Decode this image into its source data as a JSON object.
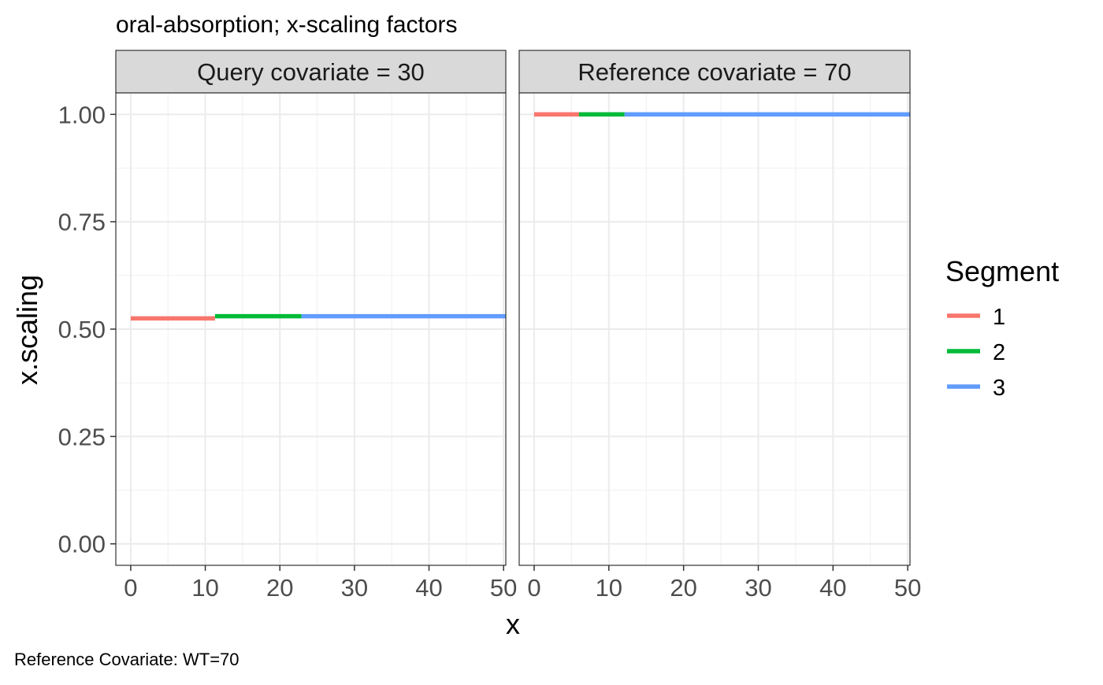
{
  "chart_data": {
    "type": "line",
    "title": "oral-absorption; x-scaling factors",
    "caption": "Reference Covariate: WT=70",
    "xlabel": "x",
    "ylabel": "x.scaling",
    "xlim": [
      -2,
      50.3
    ],
    "ylim": [
      -0.05,
      1.05
    ],
    "x_ticks": [
      0,
      10,
      20,
      30,
      40,
      50
    ],
    "x_tick_labels": [
      "0",
      "10",
      "20",
      "30",
      "40",
      "50"
    ],
    "y_ticks": [
      0,
      0.25,
      0.5,
      0.75,
      1
    ],
    "y_tick_labels": [
      "0.00",
      "0.25",
      "0.50",
      "0.75",
      "1.00"
    ],
    "grid": true,
    "legend": {
      "title": "Segment",
      "position": "right",
      "entries": [
        {
          "label": "1",
          "color": "#F8766D"
        },
        {
          "label": "2",
          "color": "#00BA38"
        },
        {
          "label": "3",
          "color": "#619CFF"
        }
      ]
    },
    "panels": [
      {
        "strip": "Query  covariate = 30",
        "segments": [
          {
            "segment": "1",
            "x": [
              0,
              11.3
            ],
            "y": [
              0.525,
              0.525
            ]
          },
          {
            "segment": "2",
            "x": [
              11.3,
              22.9
            ],
            "y": [
              0.53,
              0.53
            ]
          },
          {
            "segment": "3",
            "x": [
              22.9,
              50.3
            ],
            "y": [
              0.53,
              0.53
            ]
          }
        ]
      },
      {
        "strip": "Reference  covariate = 70",
        "segments": [
          {
            "segment": "1",
            "x": [
              0,
              6.0
            ],
            "y": [
              1.0,
              1.0
            ]
          },
          {
            "segment": "2",
            "x": [
              6.0,
              12.1
            ],
            "y": [
              1.0,
              1.0
            ]
          },
          {
            "segment": "3",
            "x": [
              12.1,
              50.3
            ],
            "y": [
              1.0,
              1.0
            ]
          }
        ]
      }
    ]
  }
}
